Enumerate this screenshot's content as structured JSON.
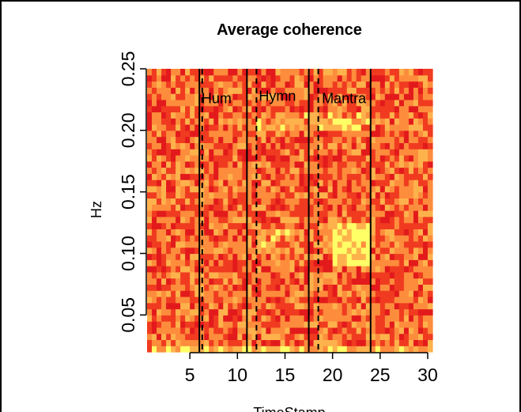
{
  "chart_data": {
    "type": "heatmap",
    "title": "Average coherence",
    "xlabel": "TimeStamp",
    "ylabel": "Hz",
    "xlim": [
      0.5,
      30.5
    ],
    "ylim": [
      0.02,
      0.25
    ],
    "xticks": [
      5,
      10,
      15,
      20,
      25,
      30
    ],
    "xtick_labels": [
      "5",
      "10",
      "15",
      "20",
      "25",
      "30"
    ],
    "yticks": [
      0.05,
      0.1,
      0.15,
      0.2,
      0.25
    ],
    "ytick_labels": [
      "0.05",
      "0.10",
      "0.15",
      "0.20",
      "0.25"
    ],
    "colormap": [
      "#e31a1c",
      "#f03b20",
      "#fd8d3c",
      "#feb24c",
      "#ffff66"
    ],
    "solid_lines_x": [
      6,
      11,
      17.5,
      24
    ],
    "dashed_lines_x": [
      6.3,
      12,
      18.5
    ],
    "annotations": [
      {
        "text": "Hum",
        "x": 7.8,
        "y": 0.222
      },
      {
        "text": "Hymn",
        "x": 14.2,
        "y": 0.224
      },
      {
        "text": "Mantra",
        "x": 21.2,
        "y": 0.222
      }
    ],
    "highlight_regions": [
      {
        "x": [
          20,
          24
        ],
        "y": [
          0.09,
          0.125
        ],
        "level": "high"
      },
      {
        "x": [
          12,
          17
        ],
        "y": [
          0.1,
          0.12
        ],
        "level": "moderate"
      },
      {
        "x": [
          12,
          24
        ],
        "y": [
          0.2,
          0.215
        ],
        "level": "moderate"
      }
    ],
    "grid": false,
    "legend": "none"
  }
}
